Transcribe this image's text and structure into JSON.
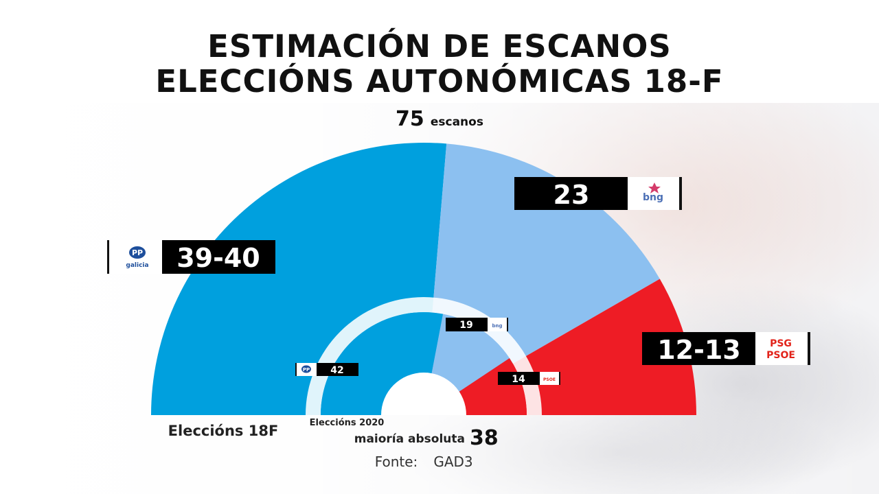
{
  "title_line1": "ESTIMACIÓN DE ESCANOS",
  "title_line2": "ELECCIÓNS AUTONÓMICAS 18-F",
  "total_seats": "75",
  "total_seats_label": "escanos",
  "majority_label": "maioría absoluta",
  "majority_value": "38",
  "source_label": "Fonte:",
  "source_value": "GAD3",
  "colors": {
    "pp": "#00a0de",
    "bng": "#8cc0f0",
    "psoe": "#ee1c25",
    "label_bg": "#000000"
  },
  "chart_data": [
    {
      "type": "pie",
      "subtype": "semicircle-parliament",
      "name": "Elecciòns 18F",
      "label": "Eleccións 18F",
      "total": 75,
      "slices": [
        {
          "party": "PP",
          "logo_text": "PP",
          "logo_subtext": "galicia",
          "value": 39.5,
          "label": "39-40",
          "color": "#00a0de"
        },
        {
          "party": "BNG",
          "logo_text": "bng",
          "value": 23,
          "label": "23",
          "color": "#8cc0f0"
        },
        {
          "party": "PSOE",
          "logo_text": "PSG",
          "logo_subtext": "PSOE",
          "value": 12.5,
          "label": "12-13",
          "color": "#ee1c25"
        }
      ]
    },
    {
      "type": "pie",
      "subtype": "semicircle-parliament",
      "name": "Eleccións 2020",
      "label": "Eleccións 2020",
      "total": 75,
      "slices": [
        {
          "party": "PP",
          "logo_text": "PP",
          "value": 42,
          "label": "42",
          "color": "#00a0de"
        },
        {
          "party": "BNG",
          "logo_text": "bng",
          "value": 19,
          "label": "19",
          "color": "#8cc0f0"
        },
        {
          "party": "PSOE",
          "logo_text": "PSOE",
          "value": 14,
          "label": "14",
          "color": "#ee1c25"
        }
      ]
    }
  ]
}
